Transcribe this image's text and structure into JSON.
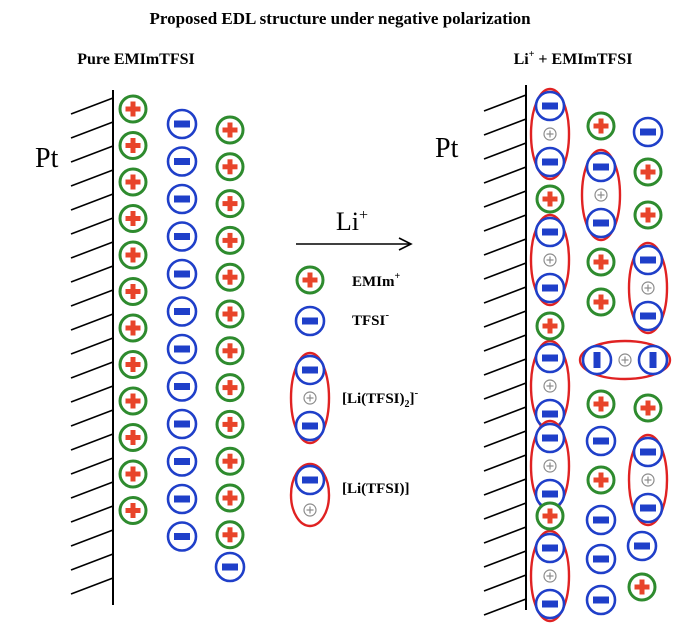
{
  "title": "Proposed EDL structure under negative polarization",
  "left_panel": {
    "heading": "Pure EMImTFSI",
    "electrode_label": "Pt"
  },
  "right_panel": {
    "heading_species": "Li",
    "heading_charge": "+",
    "heading_rest": " + EMImTFSI",
    "electrode_label": "Pt"
  },
  "arrow": {
    "label": "Li",
    "charge": "+"
  },
  "legend": [
    {
      "id": "emim",
      "name": "EMIm",
      "charge": "+"
    },
    {
      "id": "tfsi",
      "name": "TFSI",
      "charge": "-"
    },
    {
      "id": "li_tfsi2",
      "name": "[Li(TFSI)",
      "sub": "2",
      "suffix": "]",
      "charge": "-"
    },
    {
      "id": "li_tfsi",
      "name": "[Li(TFSI)]"
    }
  ],
  "colors": {
    "cation_ring": "#2e8b2e",
    "cation_cross": "#e8442a",
    "anion_ring": "#1f3fc9",
    "anion_bar": "#1f3fc9",
    "complex_outline": "#e02222",
    "li_ring": "#8c8c8c",
    "electrode": "#000000"
  }
}
